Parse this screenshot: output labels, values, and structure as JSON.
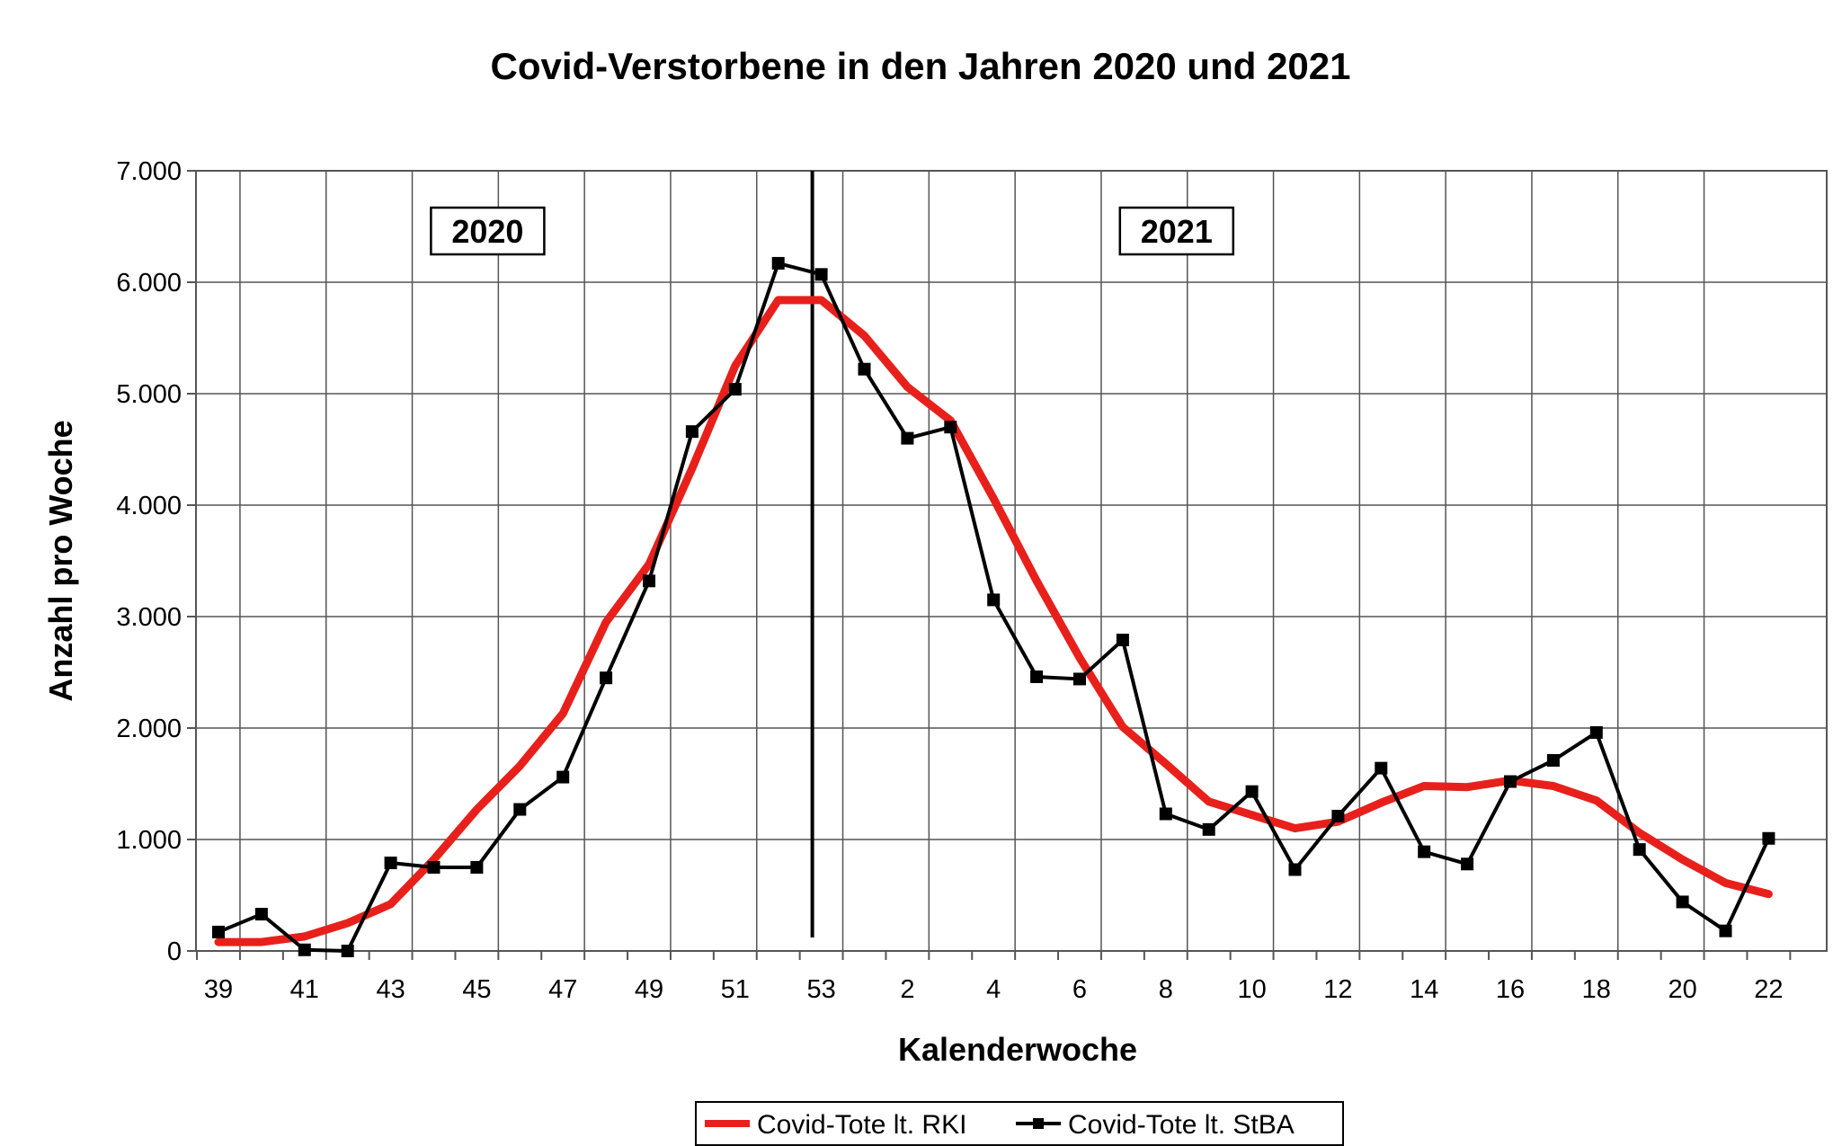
{
  "chart_data": {
    "type": "line",
    "title": "Covid-Verstorbene in den Jahren 2020 und 2021",
    "xlabel": "Kalenderwoche",
    "ylabel": "Anzahl pro Woche",
    "ylim": [
      0,
      7000
    ],
    "y_ticks": [
      0,
      1000,
      2000,
      3000,
      4000,
      5000,
      6000,
      7000
    ],
    "y_tick_labels": [
      "0",
      "1.000",
      "2.000",
      "3.000",
      "4.000",
      "5.000",
      "6.000",
      "7.000"
    ],
    "grid": true,
    "legend_position": "bottom",
    "categories": [
      "39",
      "40",
      "41",
      "42",
      "43",
      "44",
      "45",
      "46",
      "47",
      "48",
      "49",
      "50",
      "51",
      "52",
      "53",
      "1",
      "2",
      "3",
      "4",
      "5",
      "6",
      "7",
      "8",
      "9",
      "10",
      "11",
      "12",
      "13",
      "14",
      "15",
      "16",
      "17",
      "18",
      "19",
      "20",
      "21",
      "22"
    ],
    "x_tick_labels": [
      "39",
      "41",
      "43",
      "45",
      "47",
      "49",
      "51",
      "53",
      "2",
      "4",
      "6",
      "8",
      "10",
      "12",
      "14",
      "16",
      "18",
      "20",
      "22"
    ],
    "year_markers": [
      {
        "label": "2020",
        "category": "45"
      },
      {
        "label": "2021",
        "category": "8"
      }
    ],
    "divider_after_category": "53",
    "series": [
      {
        "name": "Covid-Tote lt. RKI",
        "color": "#e8201c",
        "values": [
          80,
          80,
          130,
          250,
          420,
          820,
          1270,
          1660,
          2130,
          2950,
          3470,
          4330,
          5250,
          5840,
          5840,
          5520,
          5060,
          4760,
          4060,
          3320,
          2630,
          2010,
          1680,
          1340,
          1220,
          1100,
          1160,
          1330,
          1480,
          1470,
          1530,
          1480,
          1350,
          1060,
          820,
          610,
          510
        ]
      },
      {
        "name": "Covid-Tote lt. StBA",
        "color": "#000000",
        "values": [
          170,
          330,
          10,
          0,
          790,
          750,
          750,
          1270,
          1560,
          2450,
          3320,
          4660,
          5040,
          6170,
          6070,
          5220,
          4600,
          4700,
          3150,
          2460,
          2440,
          2790,
          1230,
          1090,
          1430,
          730,
          1210,
          1640,
          890,
          780,
          1520,
          1710,
          1960,
          910,
          440,
          180,
          1010
        ]
      }
    ]
  }
}
